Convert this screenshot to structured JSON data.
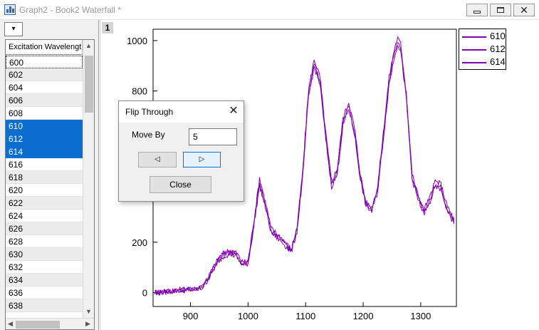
{
  "window": {
    "title": "Graph2 - Book2 Waterfall *",
    "buttons": {
      "minimize": "minimize",
      "maximize": "maximize",
      "close": "✕"
    }
  },
  "sheet": {
    "dropdown_glyph": "▾",
    "column_header": "Excitation Wavelength",
    "rows": [
      {
        "label": "600",
        "selected": false
      },
      {
        "label": "602",
        "selected": false
      },
      {
        "label": "604",
        "selected": false
      },
      {
        "label": "606",
        "selected": false
      },
      {
        "label": "608",
        "selected": false
      },
      {
        "label": "610",
        "selected": true
      },
      {
        "label": "612",
        "selected": true
      },
      {
        "label": "614",
        "selected": true
      },
      {
        "label": "616",
        "selected": false
      },
      {
        "label": "618",
        "selected": false
      },
      {
        "label": "620",
        "selected": false
      },
      {
        "label": "622",
        "selected": false
      },
      {
        "label": "624",
        "selected": false
      },
      {
        "label": "626",
        "selected": false
      },
      {
        "label": "628",
        "selected": false
      },
      {
        "label": "630",
        "selected": false
      },
      {
        "label": "632",
        "selected": false
      },
      {
        "label": "634",
        "selected": false
      },
      {
        "label": "636",
        "selected": false
      },
      {
        "label": "638",
        "selected": false
      }
    ]
  },
  "graph": {
    "layer_label": "1",
    "line_color": "#8000b0"
  },
  "chart_data": {
    "type": "line",
    "title": "",
    "xlabel": "",
    "ylabel": "",
    "xlim": [
      835,
      1362
    ],
    "ylim": [
      -55,
      1045
    ],
    "x_ticks": [
      900,
      1000,
      1100,
      1200,
      1300
    ],
    "y_ticks": [
      0,
      200,
      400,
      600,
      800,
      1000
    ],
    "y_tick_labels": [
      "0",
      "200",
      "",
      "",
      "800",
      "1000"
    ],
    "legend_position": "top-right-outside",
    "series": [
      {
        "name": "610",
        "x": [
          838,
          860,
          880,
          900,
          920,
          930,
          940,
          950,
          960,
          970,
          980,
          990,
          1000,
          1010,
          1020,
          1030,
          1040,
          1050,
          1060,
          1075,
          1085,
          1095,
          1105,
          1115,
          1125,
          1135,
          1145,
          1155,
          1165,
          1175,
          1185,
          1195,
          1205,
          1215,
          1225,
          1235,
          1245,
          1255,
          1260,
          1265,
          1275,
          1285,
          1295,
          1305,
          1315,
          1325,
          1335,
          1345,
          1358
        ],
        "y": [
          0,
          5,
          10,
          12,
          20,
          55,
          95,
          135,
          155,
          160,
          150,
          115,
          120,
          270,
          440,
          350,
          245,
          225,
          205,
          165,
          250,
          470,
          790,
          910,
          840,
          620,
          430,
          480,
          680,
          740,
          640,
          460,
          350,
          330,
          410,
          620,
          840,
          960,
          1000,
          975,
          780,
          460,
          380,
          320,
          360,
          430,
          420,
          340,
          280
        ]
      },
      {
        "name": "612",
        "x": [
          838,
          860,
          880,
          900,
          920,
          930,
          940,
          950,
          960,
          970,
          980,
          990,
          1000,
          1010,
          1020,
          1030,
          1040,
          1050,
          1060,
          1075,
          1085,
          1095,
          1105,
          1115,
          1125,
          1135,
          1145,
          1155,
          1165,
          1175,
          1185,
          1195,
          1205,
          1215,
          1225,
          1235,
          1245,
          1255,
          1260,
          1265,
          1275,
          1285,
          1295,
          1305,
          1315,
          1325,
          1335,
          1345,
          1358
        ],
        "y": [
          2,
          7,
          12,
          14,
          22,
          60,
          102,
          142,
          162,
          168,
          158,
          122,
          126,
          282,
          455,
          362,
          255,
          234,
          213,
          172,
          258,
          482,
          806,
          925,
          856,
          632,
          442,
          492,
          694,
          755,
          652,
          470,
          358,
          338,
          420,
          632,
          855,
          975,
          1010,
          988,
          792,
          470,
          390,
          330,
          372,
          442,
          432,
          350,
          288
        ]
      },
      {
        "name": "614",
        "x": [
          838,
          860,
          880,
          900,
          920,
          930,
          940,
          950,
          960,
          970,
          980,
          990,
          1000,
          1010,
          1020,
          1030,
          1040,
          1050,
          1060,
          1075,
          1085,
          1095,
          1105,
          1115,
          1125,
          1135,
          1145,
          1155,
          1165,
          1175,
          1185,
          1195,
          1205,
          1215,
          1225,
          1235,
          1245,
          1255,
          1260,
          1265,
          1275,
          1285,
          1295,
          1305,
          1315,
          1325,
          1335,
          1345,
          1358
        ],
        "y": [
          -3,
          3,
          8,
          10,
          18,
          50,
          90,
          128,
          148,
          152,
          143,
          110,
          115,
          262,
          425,
          340,
          238,
          218,
          198,
          160,
          243,
          460,
          776,
          895,
          826,
          608,
          420,
          468,
          665,
          728,
          628,
          450,
          342,
          322,
          400,
          608,
          826,
          945,
          985,
          962,
          768,
          450,
          372,
          312,
          350,
          420,
          410,
          332,
          272
        ]
      }
    ]
  },
  "dialog": {
    "title": "Flip Through",
    "close_glyph": "✕",
    "move_by_label": "Move By",
    "move_by_value": "5",
    "prev_glyph": "◁",
    "next_glyph": "▷",
    "close_label": "Close"
  }
}
